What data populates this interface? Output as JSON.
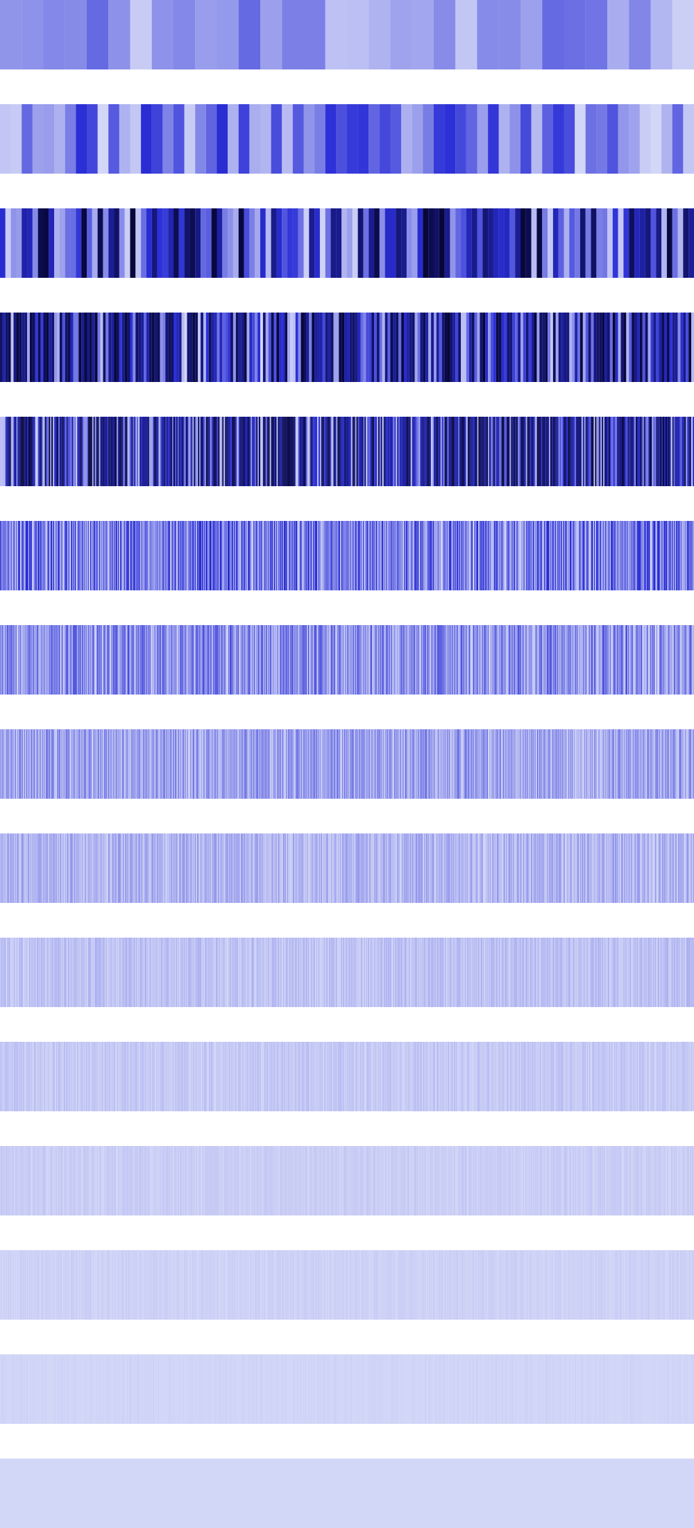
{
  "chart_data": {
    "type": "heatmap",
    "rows": 15,
    "grid": false,
    "legend": "none",
    "colorscale": {
      "min_color": "#d2d6f7",
      "mid_color": "#2a2ed6",
      "max_color": "#060636"
    },
    "row_layers": [
      {
        "columns": 32,
        "seed": 11,
        "intensity_max": 0.38,
        "dark_probability": 0.0
      },
      {
        "columns": 64,
        "seed": 23,
        "intensity_max": 0.52,
        "dark_probability": 0.0
      },
      {
        "columns": 128,
        "seed": 37,
        "intensity_max": 1.0,
        "dark_probability": 0.12
      },
      {
        "columns": 256,
        "seed": 41,
        "intensity_max": 1.0,
        "dark_probability": 0.35
      },
      {
        "columns": 512,
        "seed": 53,
        "intensity_max": 1.0,
        "dark_probability": 0.3
      },
      {
        "columns": 1024,
        "seed": 67,
        "intensity_max": 0.55,
        "dark_probability": 0.0
      },
      {
        "columns": 2048,
        "seed": 71,
        "intensity_max": 0.42,
        "dark_probability": 0.0
      },
      {
        "columns": 4096,
        "seed": 83,
        "intensity_max": 0.3,
        "dark_probability": 0.0
      },
      {
        "columns": 8192,
        "seed": 97,
        "intensity_max": 0.2,
        "dark_probability": 0.0
      },
      {
        "columns": 16384,
        "seed": 101,
        "intensity_max": 0.12,
        "dark_probability": 0.0
      },
      {
        "columns": 32768,
        "seed": 113,
        "intensity_max": 0.08,
        "dark_probability": 0.0
      },
      {
        "columns": 65536,
        "seed": 127,
        "intensity_max": 0.05,
        "dark_probability": 0.0
      },
      {
        "columns": 131072,
        "seed": 131,
        "intensity_max": 0.03,
        "dark_probability": 0.0
      },
      {
        "columns": 262144,
        "seed": 149,
        "intensity_max": 0.015,
        "dark_probability": 0.0
      },
      {
        "columns": 524288,
        "seed": 151,
        "intensity_max": 0.006,
        "dark_probability": 0.0
      }
    ]
  }
}
